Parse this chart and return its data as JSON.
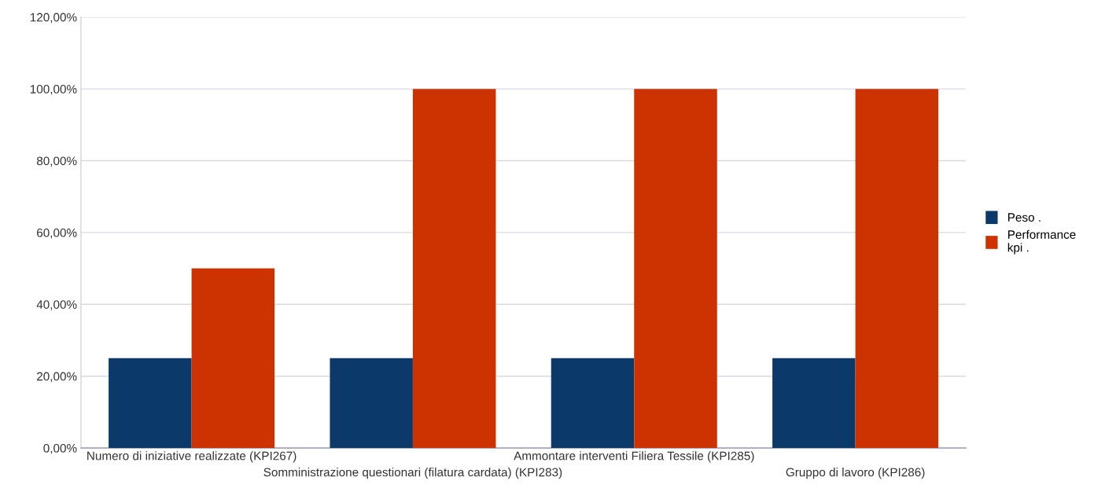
{
  "chart_data": {
    "type": "bar",
    "categories": [
      "Numero di iniziative realizzate (KPI267)",
      "Somministrazione questionari (filatura cardata) (KPI283)",
      "Ammontare interventi Filiera Tessile (KPI285)",
      "Gruppo di lavoro (KPI286)"
    ],
    "series": [
      {
        "name": "Peso .",
        "color": "#0b3a6a",
        "values": [
          25,
          25,
          25,
          25
        ]
      },
      {
        "name": "Performance\nkpi .",
        "color": "#cc3300",
        "values": [
          50,
          100,
          100,
          100
        ]
      }
    ],
    "ylim": [
      0,
      120
    ],
    "yticks": [
      {
        "value": 0,
        "label": "0,00%"
      },
      {
        "value": 20,
        "label": "20,00%"
      },
      {
        "value": 40,
        "label": "40,00%"
      },
      {
        "value": 60,
        "label": "60,00%"
      },
      {
        "value": 80,
        "label": "80,00%"
      },
      {
        "value": 100,
        "label": "100,00%"
      },
      {
        "value": 120,
        "label": "120,00%"
      }
    ],
    "grid": "y",
    "legend": "right"
  }
}
